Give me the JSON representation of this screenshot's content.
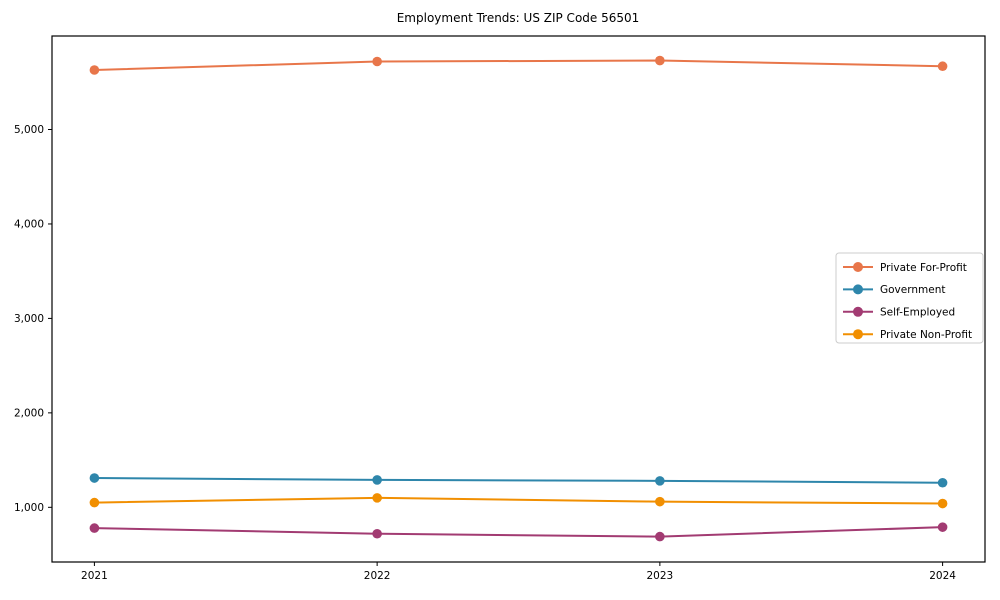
{
  "chart_data": {
    "type": "line",
    "title": "Employment Trends: US ZIP Code 56501",
    "xlabel": "",
    "ylabel": "",
    "categories": [
      "2021",
      "2022",
      "2023",
      "2024"
    ],
    "series": [
      {
        "name": "Private For-Profit",
        "color": "#E8764A",
        "values": [
          5630,
          5720,
          5730,
          5670
        ]
      },
      {
        "name": "Government",
        "color": "#2E86AB",
        "values": [
          1310,
          1290,
          1280,
          1260
        ]
      },
      {
        "name": "Self-Employed",
        "color": "#A23B72",
        "values": [
          780,
          720,
          690,
          790
        ]
      },
      {
        "name": "Private Non-Profit",
        "color": "#F18F01",
        "values": [
          1050,
          1100,
          1060,
          1040
        ]
      }
    ],
    "y_ticks": [
      {
        "value": 1000,
        "label": "1,000"
      },
      {
        "value": 2000,
        "label": "2,000"
      },
      {
        "value": 3000,
        "label": "3,000"
      },
      {
        "value": 4000,
        "label": "4,000"
      },
      {
        "value": 5000,
        "label": "5,000"
      }
    ],
    "ylim": [
      421,
      5990
    ],
    "grid": false,
    "legend_position": "center-right",
    "marker": "circle",
    "axis_color": "#000000",
    "legend_border_color": "#cccccc",
    "background_color": "#ffffff"
  }
}
